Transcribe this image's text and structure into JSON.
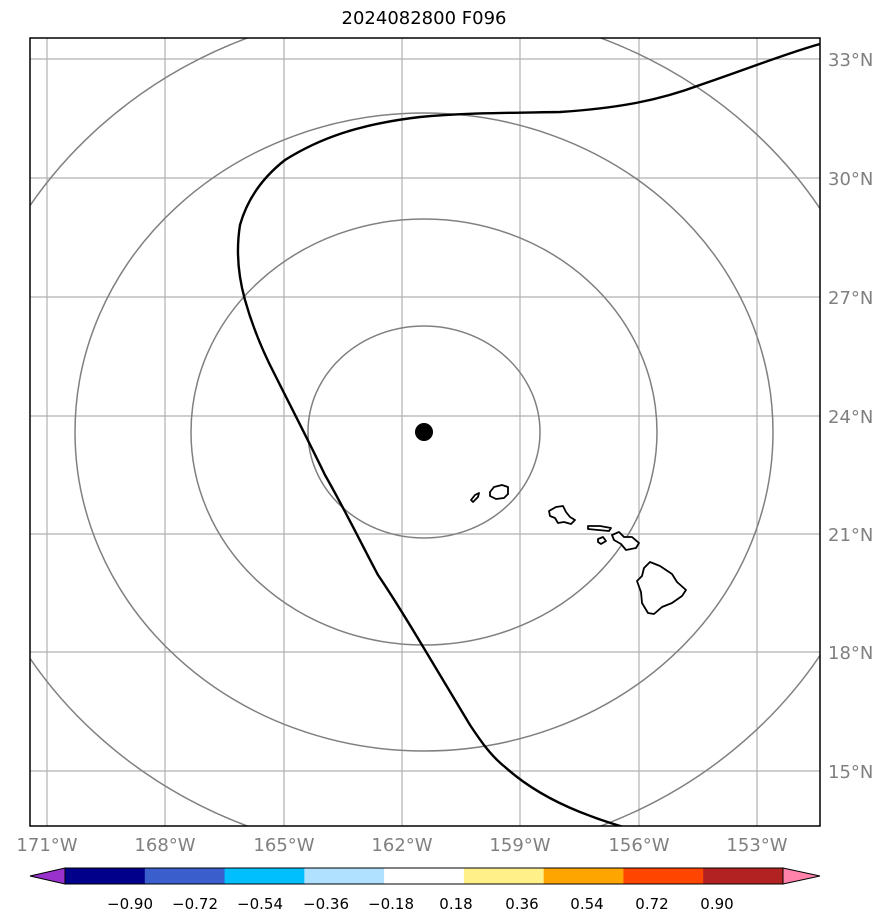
{
  "title": "2024082800 F096",
  "map": {
    "lon_ticks": [
      "171°W",
      "168°W",
      "165°W",
      "162°W",
      "159°W",
      "156°W",
      "153°W"
    ],
    "lat_ticks": [
      "33°N",
      "30°N",
      "27°N",
      "24°N",
      "21°N",
      "18°N",
      "15°N"
    ],
    "center_marker": {
      "label": "storm-center",
      "color": "#000000"
    },
    "track_color": "#000000",
    "range_ring_color": "#808080",
    "grid_color": "#b0b0b0"
  },
  "colorbar": {
    "colors": [
      "#9932cc",
      "#00008b",
      "#3a5fcd",
      "#00bfff",
      "#b0e2ff",
      "#ffffff",
      "#fff08a",
      "#ffa500",
      "#ff4500",
      "#b22222",
      "#ff82ab"
    ],
    "tick_labels": [
      "−0.90",
      "−0.72",
      "−0.54",
      "−0.36",
      "−0.18",
      "0.18",
      "0.36",
      "0.54",
      "0.72",
      "0.90"
    ]
  }
}
